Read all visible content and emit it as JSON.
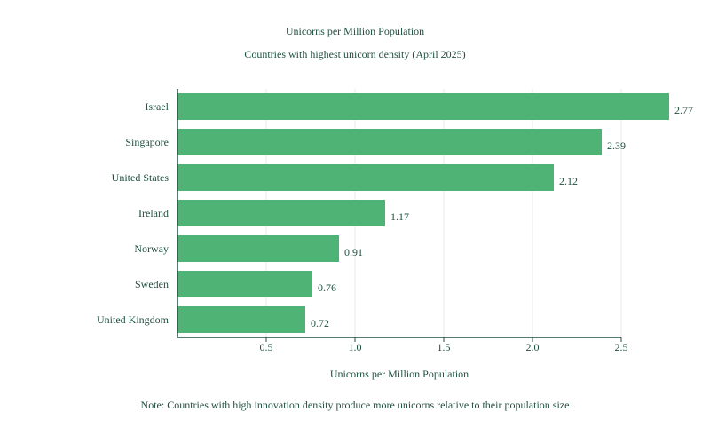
{
  "chart_data": {
    "type": "bar",
    "orientation": "horizontal",
    "title": "Unicorns per Million Population",
    "subtitle": "Countries with highest unicorn density (April 2025)",
    "xlabel": "Unicorns per Million Population",
    "ylabel": "",
    "categories": [
      "Israel",
      "Singapore",
      "United States",
      "Ireland",
      "Norway",
      "Sweden",
      "United Kingdom"
    ],
    "values": [
      2.77,
      2.39,
      2.12,
      1.17,
      0.91,
      0.76,
      0.72
    ],
    "data_labels": [
      "2.77",
      "2.39",
      "2.12",
      "1.17",
      "0.91",
      "0.76",
      "0.72"
    ],
    "xlim": [
      0,
      2.5
    ],
    "xticks": [
      0.5,
      1.0,
      1.5,
      2.0,
      2.5
    ],
    "xtick_labels": [
      "0.5",
      "1.0",
      "1.5",
      "2.0",
      "2.5"
    ],
    "grid": "vertical",
    "legend": "none",
    "bar_color": "#4fb375",
    "text_color": "#1f4f3f",
    "note": "Note: Countries with high innovation density produce more unicorns relative to their population size"
  }
}
